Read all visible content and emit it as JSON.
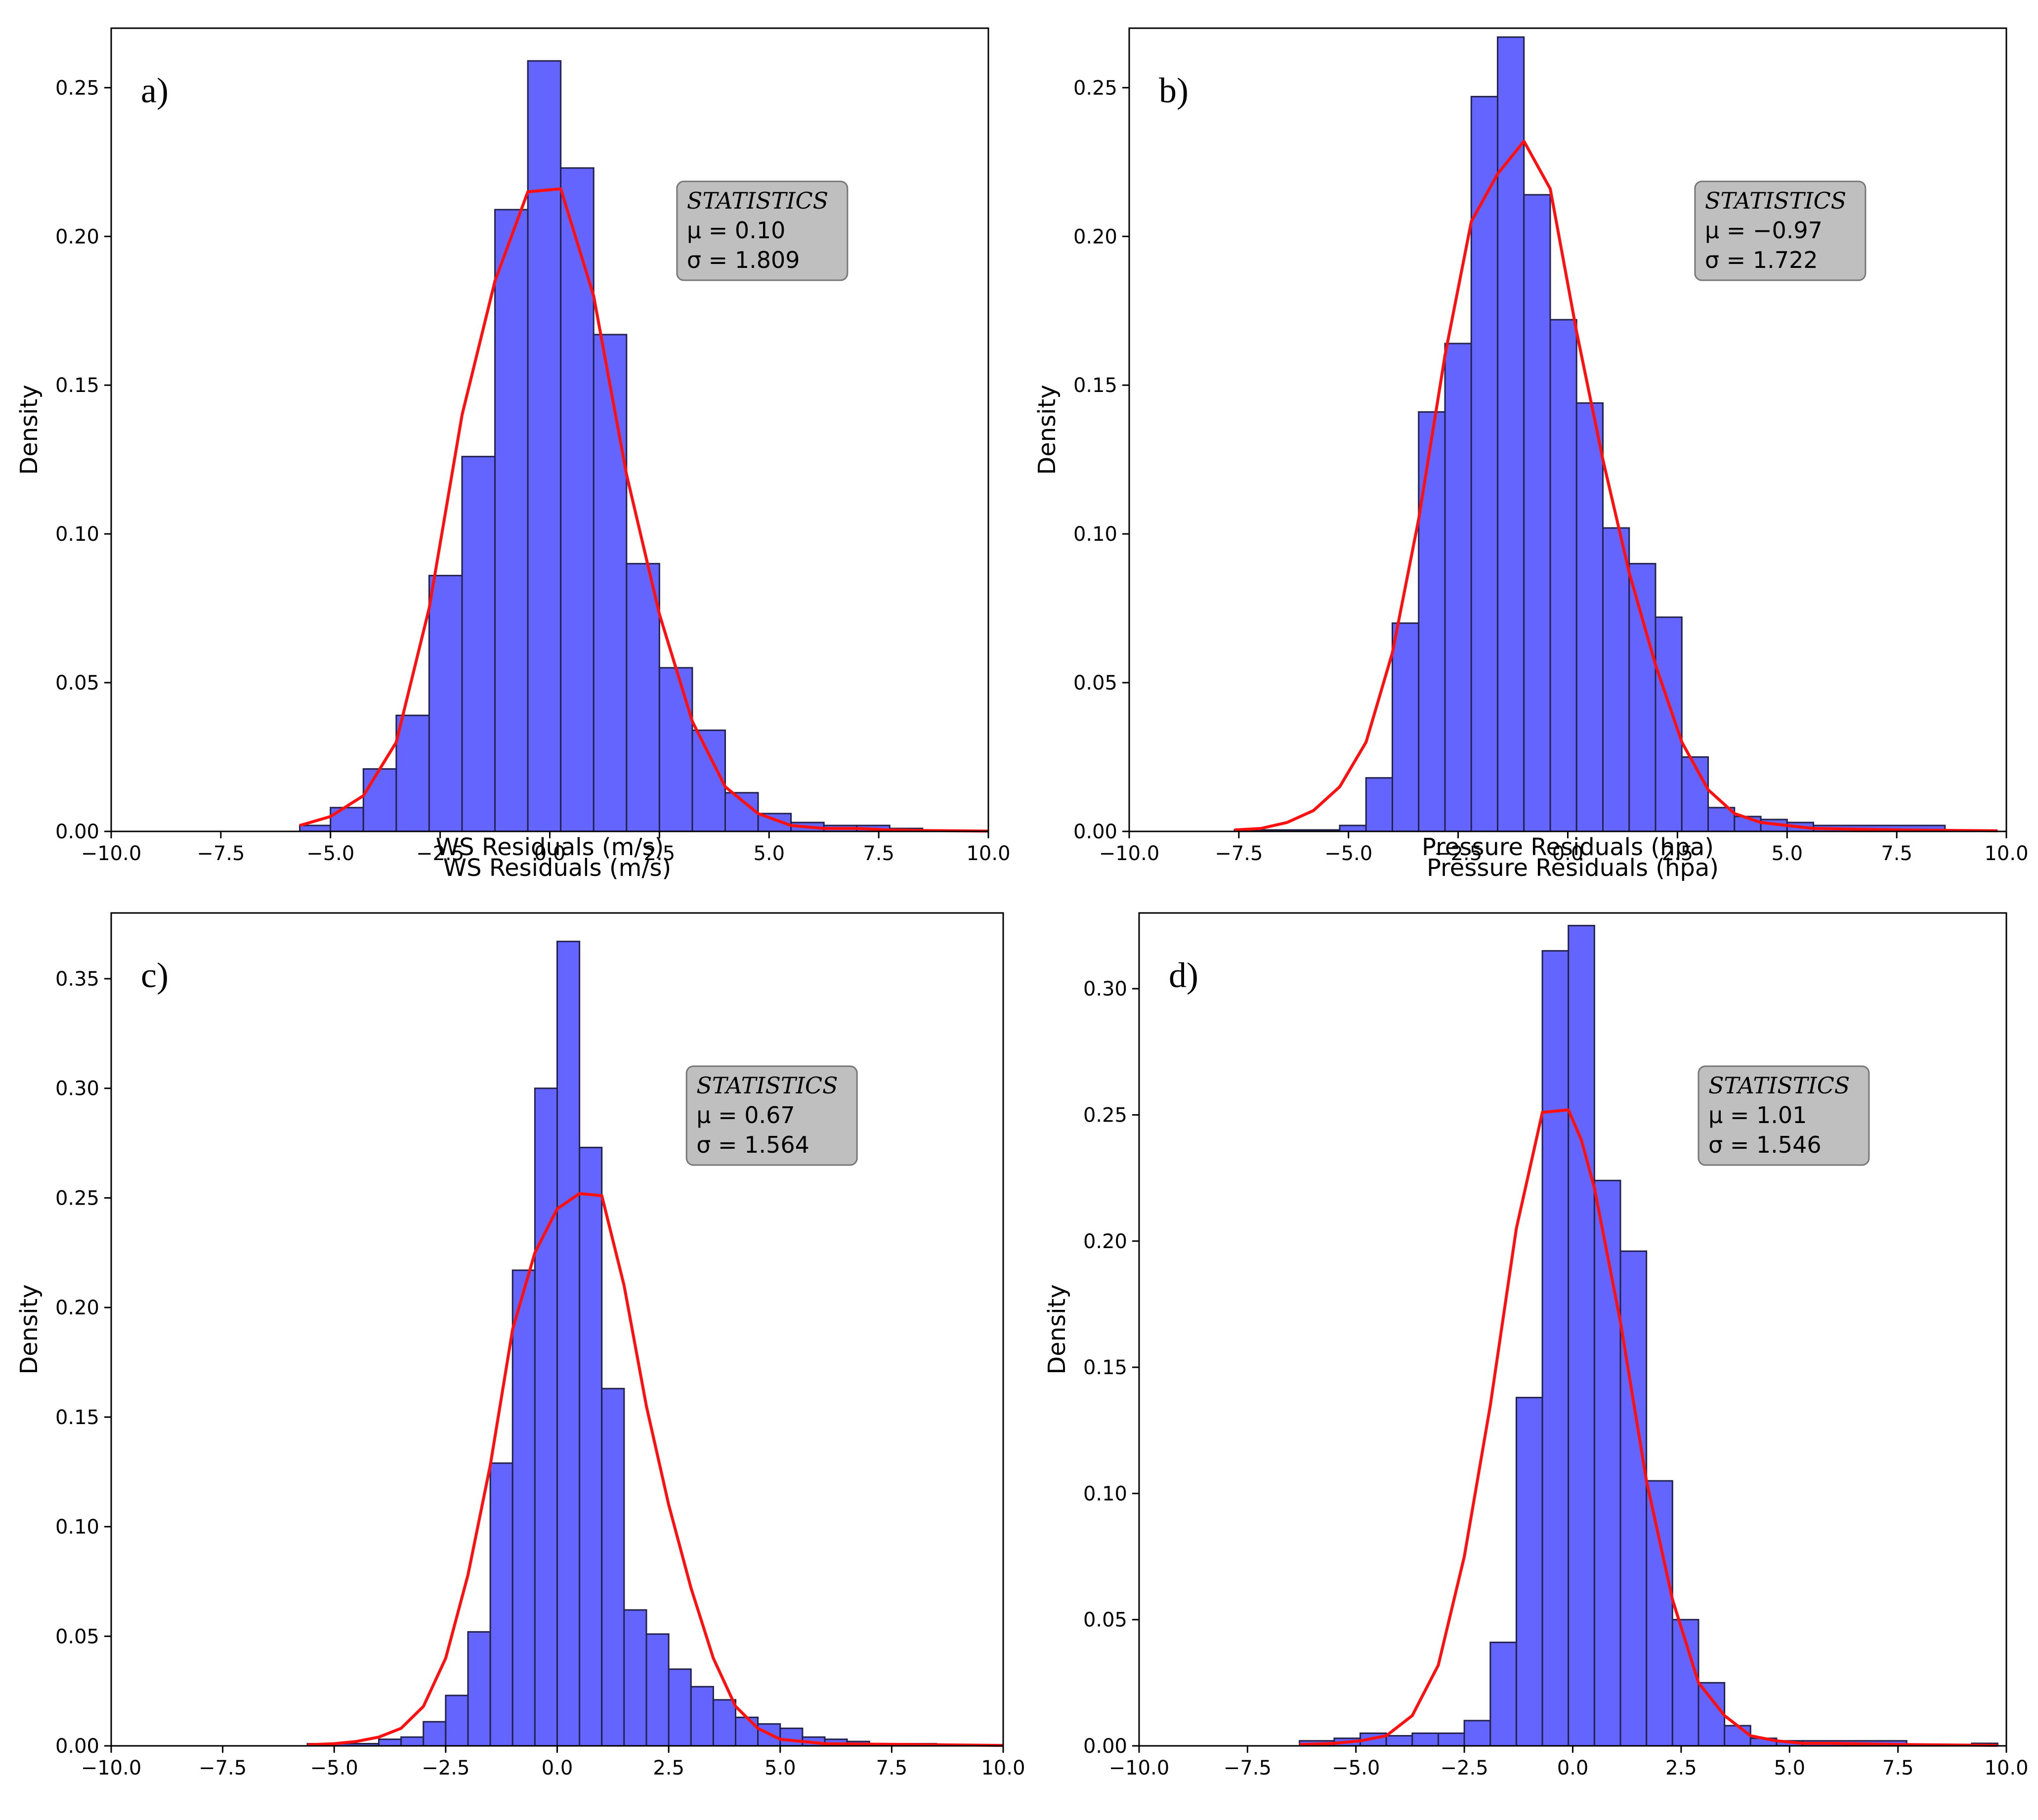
{
  "chart_data": [
    {
      "type": "bar",
      "panel_label": "a)",
      "xlabel": "WS Residuals (m/s)",
      "ylabel": "Density",
      "xlim": [
        -10,
        10
      ],
      "ylim": [
        0,
        0.27
      ],
      "xticks": [
        -10,
        -7.5,
        -5,
        -2.5,
        0,
        2.5,
        5,
        7.5,
        10
      ],
      "xtick_labels": [
        "−10.0",
        "−7.5",
        "−5.0",
        "−2.5",
        "0.0",
        "2.5",
        "5.0",
        "7.5",
        "10.0"
      ],
      "yticks": [
        0,
        0.05,
        0.1,
        0.15,
        0.2,
        0.25
      ],
      "ytick_labels": [
        "0.00",
        "0.05",
        "0.10",
        "0.15",
        "0.20",
        "0.25"
      ],
      "bins": [
        {
          "x0": -5.7,
          "x1": -5.0,
          "value": 0.002
        },
        {
          "x0": -5.0,
          "x1": -4.25,
          "value": 0.008
        },
        {
          "x0": -4.25,
          "x1": -3.5,
          "value": 0.021
        },
        {
          "x0": -3.5,
          "x1": -2.75,
          "value": 0.039
        },
        {
          "x0": -2.75,
          "x1": -2.0,
          "value": 0.086
        },
        {
          "x0": -2.0,
          "x1": -1.25,
          "value": 0.126
        },
        {
          "x0": -1.25,
          "x1": -0.5,
          "value": 0.209
        },
        {
          "x0": -0.5,
          "x1": 0.25,
          "value": 0.259
        },
        {
          "x0": 0.25,
          "x1": 1.0,
          "value": 0.223
        },
        {
          "x0": 1.0,
          "x1": 1.75,
          "value": 0.167
        },
        {
          "x0": 1.75,
          "x1": 2.5,
          "value": 0.09
        },
        {
          "x0": 2.5,
          "x1": 3.25,
          "value": 0.055
        },
        {
          "x0": 3.25,
          "x1": 4.0,
          "value": 0.034
        },
        {
          "x0": 4.0,
          "x1": 4.75,
          "value": 0.013
        },
        {
          "x0": 4.75,
          "x1": 5.5,
          "value": 0.006
        },
        {
          "x0": 5.5,
          "x1": 6.25,
          "value": 0.003
        },
        {
          "x0": 6.25,
          "x1": 7.0,
          "value": 0.002
        },
        {
          "x0": 7.0,
          "x1": 7.75,
          "value": 0.002
        },
        {
          "x0": 7.75,
          "x1": 8.5,
          "value": 0.001
        }
      ],
      "curve": {
        "x": [
          -5.7,
          -5.0,
          -4.25,
          -3.5,
          -2.75,
          -2.0,
          -1.25,
          -0.5,
          0.25,
          1.0,
          1.75,
          2.5,
          3.25,
          4.0,
          4.75,
          5.5,
          6.25,
          7.0,
          7.75,
          8.5,
          10.0
        ],
        "y": [
          0.002,
          0.005,
          0.012,
          0.03,
          0.075,
          0.14,
          0.185,
          0.215,
          0.216,
          0.18,
          0.12,
          0.073,
          0.037,
          0.015,
          0.006,
          0.002,
          0.001,
          0.001,
          0.0005,
          0.0003,
          0.0001
        ]
      },
      "stats": {
        "title": "STATISTICS",
        "mu": "μ = 0.10",
        "sigma": "σ = 1.809"
      }
    },
    {
      "type": "bar",
      "panel_label": "b)",
      "xlabel": "Pressure Residuals (hpa)",
      "ylabel": "Density",
      "xlim": [
        -10,
        10
      ],
      "ylim": [
        0,
        0.27
      ],
      "xticks": [
        -10,
        -7.5,
        -5,
        -2.5,
        0,
        2.5,
        5,
        7.5,
        10
      ],
      "xtick_labels": [
        "−10.0",
        "−7.5",
        "−5.0",
        "−2.5",
        "0.0",
        "2.5",
        "5.0",
        "7.5",
        "10.0"
      ],
      "yticks": [
        0,
        0.05,
        0.1,
        0.15,
        0.2,
        0.25
      ],
      "ytick_labels": [
        "0.00",
        "0.05",
        "0.10",
        "0.15",
        "0.20",
        "0.25"
      ],
      "bins": [
        {
          "x0": -7.6,
          "x1": -5.2,
          "value": 0.0005
        },
        {
          "x0": -5.2,
          "x1": -4.6,
          "value": 0.002
        },
        {
          "x0": -4.6,
          "x1": -4.0,
          "value": 0.018
        },
        {
          "x0": -4.0,
          "x1": -3.4,
          "value": 0.07
        },
        {
          "x0": -3.4,
          "x1": -2.8,
          "value": 0.141
        },
        {
          "x0": -2.8,
          "x1": -2.2,
          "value": 0.164
        },
        {
          "x0": -2.2,
          "x1": -1.6,
          "value": 0.247
        },
        {
          "x0": -1.6,
          "x1": -1.0,
          "value": 0.267
        },
        {
          "x0": -1.0,
          "x1": -0.4,
          "value": 0.214
        },
        {
          "x0": -0.4,
          "x1": 0.2,
          "value": 0.172
        },
        {
          "x0": 0.2,
          "x1": 0.8,
          "value": 0.144
        },
        {
          "x0": 0.8,
          "x1": 1.4,
          "value": 0.102
        },
        {
          "x0": 1.4,
          "x1": 2.0,
          "value": 0.09
        },
        {
          "x0": 2.0,
          "x1": 2.6,
          "value": 0.072
        },
        {
          "x0": 2.6,
          "x1": 3.2,
          "value": 0.025
        },
        {
          "x0": 3.2,
          "x1": 3.8,
          "value": 0.008
        },
        {
          "x0": 3.8,
          "x1": 4.4,
          "value": 0.005
        },
        {
          "x0": 4.4,
          "x1": 5.0,
          "value": 0.004
        },
        {
          "x0": 5.0,
          "x1": 5.6,
          "value": 0.003
        },
        {
          "x0": 5.6,
          "x1": 8.6,
          "value": 0.002
        }
      ],
      "curve": {
        "x": [
          -7.6,
          -7.0,
          -6.4,
          -5.8,
          -5.2,
          -4.6,
          -4.0,
          -3.4,
          -2.8,
          -2.2,
          -1.6,
          -1.0,
          -0.4,
          0.2,
          0.8,
          1.4,
          2.0,
          2.6,
          3.2,
          3.8,
          4.4,
          5.0,
          5.6,
          6.4,
          7.6,
          9.8
        ],
        "y": [
          0.0005,
          0.001,
          0.003,
          0.007,
          0.015,
          0.03,
          0.06,
          0.105,
          0.16,
          0.205,
          0.221,
          0.232,
          0.216,
          0.168,
          0.125,
          0.087,
          0.056,
          0.03,
          0.014,
          0.006,
          0.003,
          0.002,
          0.001,
          0.0008,
          0.0005,
          0.0002
        ]
      },
      "stats": {
        "title": "STATISTICS",
        "mu": "μ = −0.97",
        "sigma": "σ = 1.722"
      }
    },
    {
      "type": "bar",
      "panel_label": "c)",
      "xlabel": "WS Residuals (m/s)",
      "ylabel": "Density",
      "xlim": [
        -10,
        10
      ],
      "ylim": [
        0,
        0.38
      ],
      "xticks": [
        -10,
        -7.5,
        -5,
        -2.5,
        0,
        2.5,
        5,
        7.5,
        10
      ],
      "xtick_labels": [
        "−10.0",
        "−7.5",
        "−5.0",
        "−2.5",
        "0.0",
        "2.5",
        "5.0",
        "7.5",
        "10.0"
      ],
      "yticks": [
        0,
        0.05,
        0.1,
        0.15,
        0.2,
        0.25,
        0.3,
        0.35
      ],
      "ytick_labels": [
        "0.00",
        "0.05",
        "0.10",
        "0.15",
        "0.20",
        "0.25",
        "0.30",
        "0.35"
      ],
      "bins": [
        {
          "x0": -5.6,
          "x1": -4.0,
          "value": 0.001
        },
        {
          "x0": -4.0,
          "x1": -3.5,
          "value": 0.003
        },
        {
          "x0": -3.5,
          "x1": -3.0,
          "value": 0.004
        },
        {
          "x0": -3.0,
          "x1": -2.5,
          "value": 0.011
        },
        {
          "x0": -2.5,
          "x1": -2.0,
          "value": 0.023
        },
        {
          "x0": -2.0,
          "x1": -1.5,
          "value": 0.052
        },
        {
          "x0": -1.5,
          "x1": -1.0,
          "value": 0.129
        },
        {
          "x0": -1.0,
          "x1": -0.5,
          "value": 0.217
        },
        {
          "x0": -0.5,
          "x1": 0.0,
          "value": 0.3
        },
        {
          "x0": 0.0,
          "x1": 0.5,
          "value": 0.367
        },
        {
          "x0": 0.5,
          "x1": 1.0,
          "value": 0.273
        },
        {
          "x0": 1.0,
          "x1": 1.5,
          "value": 0.163
        },
        {
          "x0": 1.5,
          "x1": 2.0,
          "value": 0.062
        },
        {
          "x0": 2.0,
          "x1": 2.5,
          "value": 0.051
        },
        {
          "x0": 2.5,
          "x1": 3.0,
          "value": 0.035
        },
        {
          "x0": 3.0,
          "x1": 3.5,
          "value": 0.027
        },
        {
          "x0": 3.5,
          "x1": 4.0,
          "value": 0.021
        },
        {
          "x0": 4.0,
          "x1": 4.5,
          "value": 0.013
        },
        {
          "x0": 4.5,
          "x1": 5.0,
          "value": 0.01
        },
        {
          "x0": 5.0,
          "x1": 5.5,
          "value": 0.008
        },
        {
          "x0": 5.5,
          "x1": 6.0,
          "value": 0.004
        },
        {
          "x0": 6.0,
          "x1": 6.5,
          "value": 0.003
        },
        {
          "x0": 6.5,
          "x1": 7.0,
          "value": 0.002
        },
        {
          "x0": 7.0,
          "x1": 8.5,
          "value": 0.001
        }
      ],
      "curve": {
        "x": [
          -5.6,
          -5.0,
          -4.5,
          -4.0,
          -3.5,
          -3.0,
          -2.5,
          -2.0,
          -1.5,
          -1.0,
          -0.5,
          0.0,
          0.5,
          1.0,
          1.5,
          2.0,
          2.5,
          3.0,
          3.5,
          4.0,
          4.5,
          5.0,
          5.5,
          6.0,
          7.0,
          8.5,
          10.0
        ],
        "y": [
          0.0005,
          0.001,
          0.002,
          0.004,
          0.008,
          0.018,
          0.04,
          0.078,
          0.128,
          0.19,
          0.225,
          0.245,
          0.252,
          0.251,
          0.21,
          0.155,
          0.11,
          0.072,
          0.04,
          0.018,
          0.008,
          0.003,
          0.002,
          0.001,
          0.0008,
          0.0005,
          0.0002
        ]
      },
      "stats": {
        "title": "STATISTICS",
        "mu": "μ = 0.67",
        "sigma": "σ = 1.564"
      }
    },
    {
      "type": "bar",
      "panel_label": "d)",
      "xlabel": "Pressure Residuals (hpa)",
      "ylabel": "Density",
      "xlim": [
        -10,
        10
      ],
      "ylim": [
        0,
        0.33
      ],
      "xticks": [
        -10,
        -7.5,
        -5,
        -2.5,
        0,
        2.5,
        5,
        7.5,
        10
      ],
      "xtick_labels": [
        "−10.0",
        "−7.5",
        "−5.0",
        "−2.5",
        "0.0",
        "2.5",
        "5.0",
        "7.5",
        "10.0"
      ],
      "yticks": [
        0,
        0.05,
        0.1,
        0.15,
        0.2,
        0.25,
        0.3
      ],
      "ytick_labels": [
        "0.00",
        "0.05",
        "0.10",
        "0.15",
        "0.20",
        "0.25",
        "0.30"
      ],
      "bins": [
        {
          "x0": -6.3,
          "x1": -5.5,
          "value": 0.002
        },
        {
          "x0": -5.5,
          "x1": -4.9,
          "value": 0.003
        },
        {
          "x0": -4.9,
          "x1": -4.3,
          "value": 0.005
        },
        {
          "x0": -4.3,
          "x1": -3.7,
          "value": 0.004
        },
        {
          "x0": -3.7,
          "x1": -3.1,
          "value": 0.005
        },
        {
          "x0": -3.1,
          "x1": -2.5,
          "value": 0.005
        },
        {
          "x0": -2.5,
          "x1": -1.9,
          "value": 0.01
        },
        {
          "x0": -1.9,
          "x1": -1.3,
          "value": 0.041
        },
        {
          "x0": -1.3,
          "x1": -0.7,
          "value": 0.138
        },
        {
          "x0": -0.7,
          "x1": -0.1,
          "value": 0.315
        },
        {
          "x0": -0.1,
          "x1": 0.5,
          "value": 0.325
        },
        {
          "x0": 0.5,
          "x1": 1.1,
          "value": 0.224
        },
        {
          "x0": 1.1,
          "x1": 1.7,
          "value": 0.196
        },
        {
          "x0": 1.7,
          "x1": 2.3,
          "value": 0.105
        },
        {
          "x0": 2.3,
          "x1": 2.9,
          "value": 0.05
        },
        {
          "x0": 2.9,
          "x1": 3.5,
          "value": 0.025
        },
        {
          "x0": 3.5,
          "x1": 4.1,
          "value": 0.008
        },
        {
          "x0": 4.1,
          "x1": 4.7,
          "value": 0.003
        },
        {
          "x0": 4.7,
          "x1": 5.3,
          "value": 0.002
        },
        {
          "x0": 5.3,
          "x1": 7.7,
          "value": 0.002
        },
        {
          "x0": 9.2,
          "x1": 9.8,
          "value": 0.001
        }
      ],
      "curve": {
        "x": [
          -6.3,
          -5.5,
          -4.9,
          -4.3,
          -3.7,
          -3.1,
          -2.5,
          -1.9,
          -1.3,
          -0.7,
          -0.1,
          0.2,
          0.5,
          1.1,
          1.7,
          2.3,
          2.9,
          3.5,
          4.1,
          4.7,
          5.3,
          6.0,
          7.7,
          9.8
        ],
        "y": [
          0.0005,
          0.001,
          0.002,
          0.004,
          0.012,
          0.032,
          0.075,
          0.135,
          0.205,
          0.251,
          0.252,
          0.24,
          0.221,
          0.168,
          0.105,
          0.058,
          0.025,
          0.012,
          0.004,
          0.002,
          0.001,
          0.001,
          0.0005,
          0.0002
        ]
      },
      "stats": {
        "title": "STATISTICS",
        "mu": "μ = 1.01",
        "sigma": "σ = 1.546"
      }
    }
  ],
  "colors": {
    "bar_fill": "#6464FF",
    "bar_edge": "#22224a",
    "curve": "#FF1010",
    "stats_box": "#BFBFBF"
  }
}
